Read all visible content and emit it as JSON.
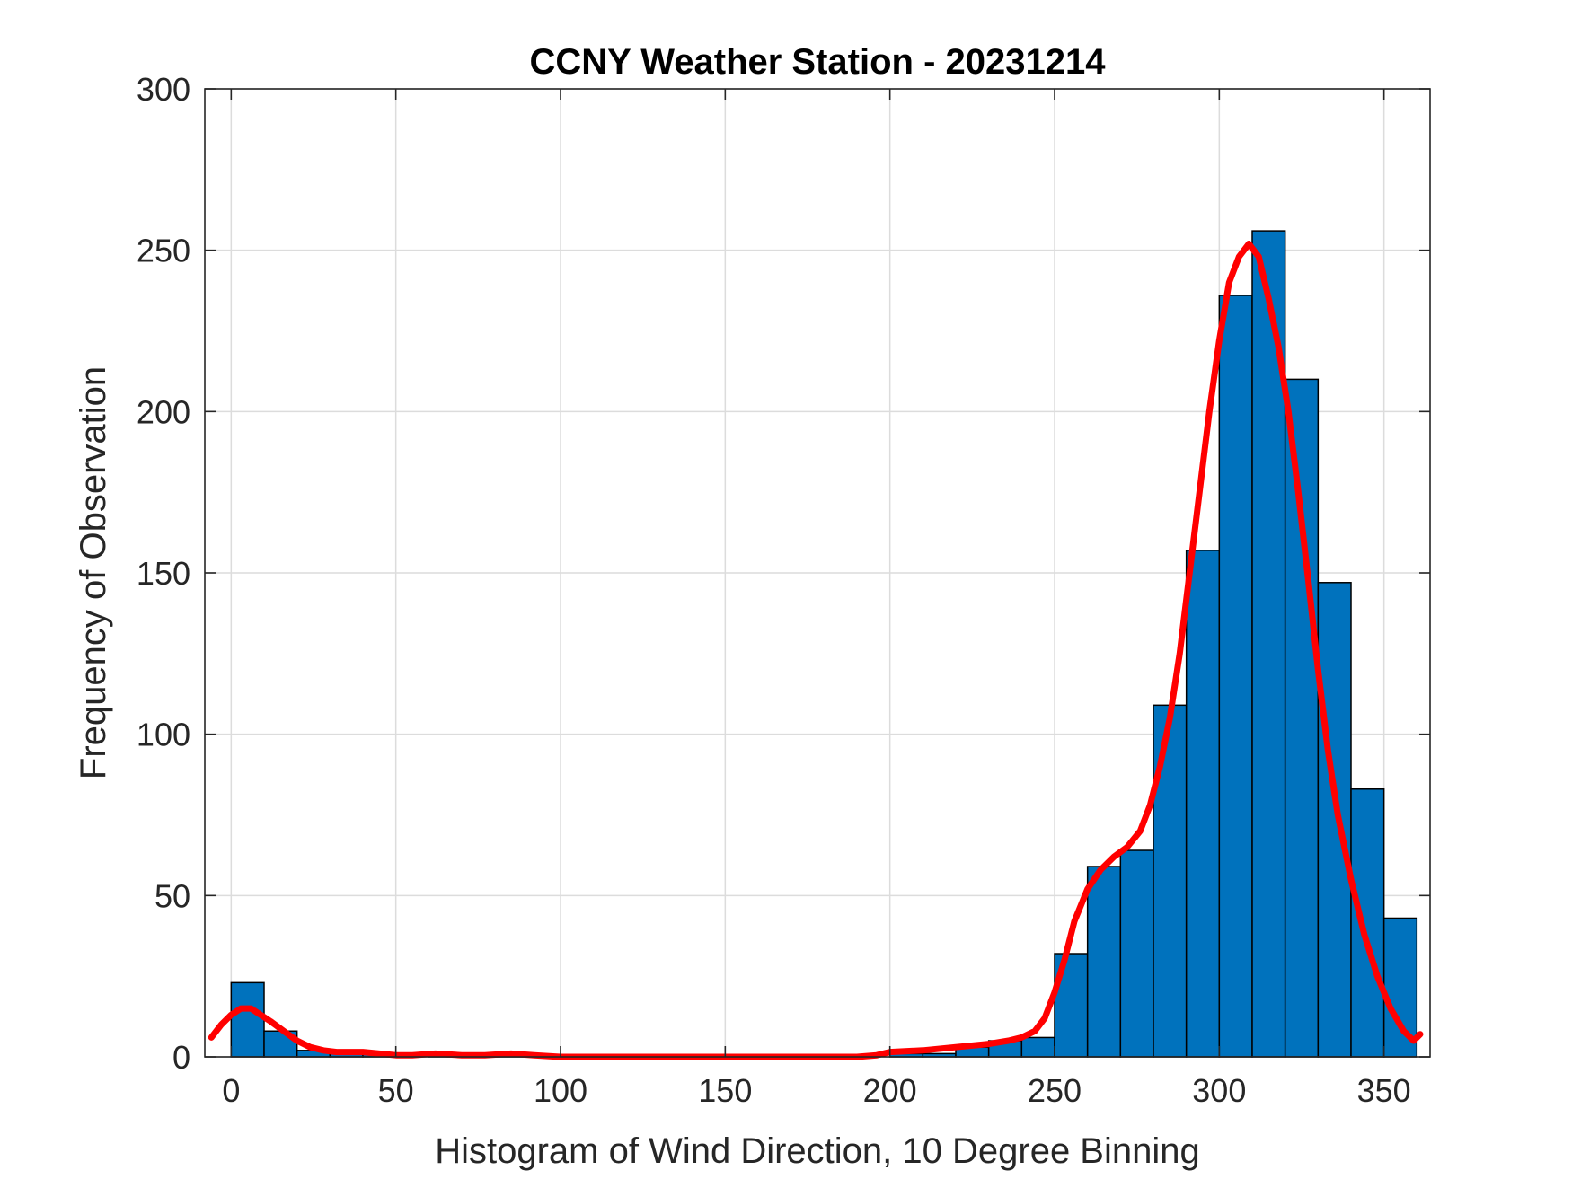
{
  "chart_data": {
    "type": "bar",
    "title": "CCNY Weather Station - 20231214",
    "xlabel": "Histogram of Wind Direction, 10 Degree Binning",
    "ylabel": "Frequency of Observation",
    "xlim": [
      -8,
      364
    ],
    "ylim": [
      0,
      300
    ],
    "xticks": [
      0,
      50,
      100,
      150,
      200,
      250,
      300,
      350
    ],
    "yticks": [
      0,
      50,
      100,
      150,
      200,
      250,
      300
    ],
    "grid": true,
    "bar_color": "#0072BD",
    "bar_edge_color": "#000000",
    "bin_width": 10,
    "bins": [
      {
        "start": 0,
        "value": 23
      },
      {
        "start": 10,
        "value": 8
      },
      {
        "start": 20,
        "value": 2
      },
      {
        "start": 30,
        "value": 1
      },
      {
        "start": 40,
        "value": 1
      },
      {
        "start": 50,
        "value": 0
      },
      {
        "start": 60,
        "value": 1
      },
      {
        "start": 70,
        "value": 0
      },
      {
        "start": 80,
        "value": 1
      },
      {
        "start": 90,
        "value": 0
      },
      {
        "start": 100,
        "value": 0
      },
      {
        "start": 110,
        "value": 0
      },
      {
        "start": 120,
        "value": 0
      },
      {
        "start": 130,
        "value": 0
      },
      {
        "start": 140,
        "value": 0
      },
      {
        "start": 150,
        "value": 0
      },
      {
        "start": 160,
        "value": 0
      },
      {
        "start": 170,
        "value": 0
      },
      {
        "start": 180,
        "value": 0
      },
      {
        "start": 190,
        "value": 0
      },
      {
        "start": 200,
        "value": 1
      },
      {
        "start": 210,
        "value": 1
      },
      {
        "start": 220,
        "value": 3
      },
      {
        "start": 230,
        "value": 5
      },
      {
        "start": 240,
        "value": 6
      },
      {
        "start": 250,
        "value": 32
      },
      {
        "start": 260,
        "value": 59
      },
      {
        "start": 270,
        "value": 64
      },
      {
        "start": 280,
        "value": 109
      },
      {
        "start": 290,
        "value": 157
      },
      {
        "start": 300,
        "value": 236
      },
      {
        "start": 310,
        "value": 256
      },
      {
        "start": 320,
        "value": 210
      },
      {
        "start": 330,
        "value": 147
      },
      {
        "start": 340,
        "value": 83
      },
      {
        "start": 350,
        "value": 43
      }
    ],
    "curve": {
      "color": "#FF0000",
      "points": [
        [
          -6,
          6
        ],
        [
          -3,
          10
        ],
        [
          0,
          13
        ],
        [
          3,
          15
        ],
        [
          6,
          15
        ],
        [
          9,
          13
        ],
        [
          12,
          11
        ],
        [
          16,
          8
        ],
        [
          20,
          5
        ],
        [
          24,
          3
        ],
        [
          28,
          2
        ],
        [
          32,
          1.5
        ],
        [
          40,
          1.5
        ],
        [
          45,
          1
        ],
        [
          50,
          0.5
        ],
        [
          55,
          0.5
        ],
        [
          62,
          1
        ],
        [
          70,
          0.5
        ],
        [
          77,
          0.5
        ],
        [
          85,
          1
        ],
        [
          92,
          0.5
        ],
        [
          100,
          0
        ],
        [
          150,
          0
        ],
        [
          190,
          0
        ],
        [
          196,
          0.5
        ],
        [
          200,
          1.5
        ],
        [
          210,
          2
        ],
        [
          220,
          3
        ],
        [
          230,
          4
        ],
        [
          236,
          5
        ],
        [
          240,
          6
        ],
        [
          244,
          8
        ],
        [
          247,
          12
        ],
        [
          250,
          20
        ],
        [
          253,
          30
        ],
        [
          256,
          42
        ],
        [
          260,
          52
        ],
        [
          264,
          58
        ],
        [
          268,
          62
        ],
        [
          272,
          65
        ],
        [
          276,
          70
        ],
        [
          279,
          78
        ],
        [
          282,
          90
        ],
        [
          285,
          105
        ],
        [
          288,
          125
        ],
        [
          291,
          150
        ],
        [
          294,
          175
        ],
        [
          297,
          200
        ],
        [
          300,
          222
        ],
        [
          303,
          240
        ],
        [
          306,
          248
        ],
        [
          309,
          252
        ],
        [
          312,
          248
        ],
        [
          315,
          235
        ],
        [
          318,
          220
        ],
        [
          321,
          200
        ],
        [
          324,
          175
        ],
        [
          327,
          148
        ],
        [
          330,
          120
        ],
        [
          333,
          95
        ],
        [
          336,
          75
        ],
        [
          340,
          55
        ],
        [
          344,
          38
        ],
        [
          348,
          25
        ],
        [
          352,
          15
        ],
        [
          356,
          8
        ],
        [
          359,
          5
        ],
        [
          361,
          7
        ]
      ]
    }
  }
}
